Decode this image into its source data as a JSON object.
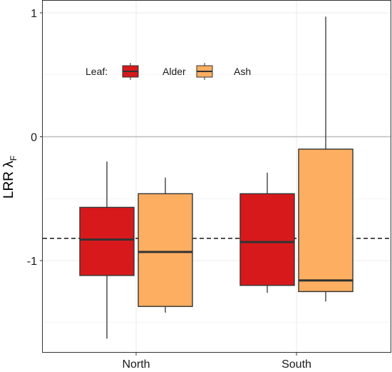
{
  "chart_data": {
    "type": "box",
    "ylabel": "LRR λ",
    "ylabel_subscript": "F",
    "categories": [
      "North",
      "South"
    ],
    "y_ticks": [
      {
        "value": 1,
        "label": "1"
      },
      {
        "value": 0,
        "label": "0"
      },
      {
        "value": -1,
        "label": "-1"
      }
    ],
    "ylim": [
      -1.73,
      1.08
    ],
    "reference_lines": [
      {
        "value": 0,
        "style": "solid",
        "color": "#bdbdbd"
      },
      {
        "value": -0.82,
        "style": "dashed",
        "color": "#000000"
      }
    ],
    "legend": {
      "title": "Leaf:",
      "placement": "top-left",
      "entries": [
        {
          "label": "Alder",
          "color": "#d7191c"
        },
        {
          "label": "Ash",
          "color": "#fdae61"
        }
      ]
    },
    "series": [
      {
        "name": "Alder",
        "color": "#d7191c",
        "boxes": [
          {
            "category": "North",
            "min": -1.63,
            "q1": -1.12,
            "median": -0.83,
            "q3": -0.57,
            "max": -0.2
          },
          {
            "category": "South",
            "min": -1.26,
            "q1": -1.2,
            "median": -0.85,
            "q3": -0.46,
            "max": -0.29
          }
        ]
      },
      {
        "name": "Ash",
        "color": "#fdae61",
        "boxes": [
          {
            "category": "North",
            "min": -1.42,
            "q1": -1.37,
            "median": -0.93,
            "q3": -0.46,
            "max": -0.33
          },
          {
            "category": "South",
            "min": -1.33,
            "q1": -1.25,
            "median": -1.16,
            "q3": -0.1,
            "max": 0.97
          }
        ]
      }
    ]
  }
}
